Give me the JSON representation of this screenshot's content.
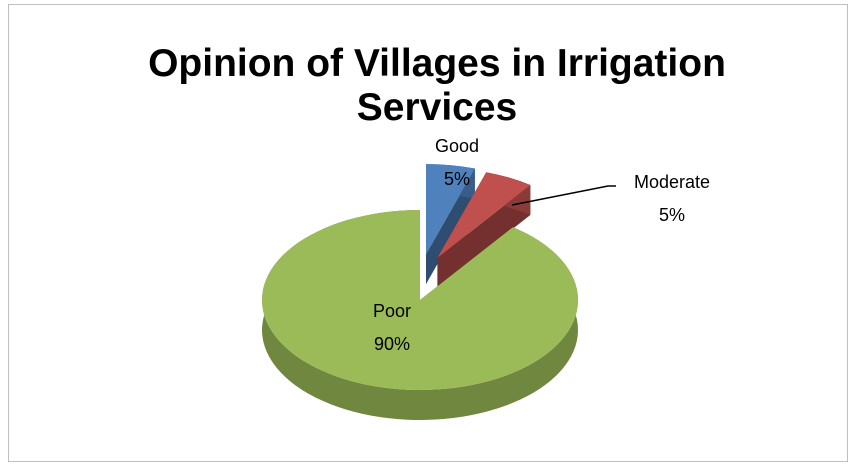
{
  "chart_data": {
    "type": "pie3d",
    "title": "Opinion of Villages in Irrigation Services",
    "categories": [
      "Good",
      "Moderate",
      "Poor"
    ],
    "values": [
      5,
      5,
      90
    ],
    "value_labels": [
      "5%",
      "5%",
      "90%"
    ],
    "colors": [
      "#4f81bd",
      "#c0504d",
      "#9bbb59"
    ],
    "explode": [
      true,
      true,
      false
    ]
  }
}
